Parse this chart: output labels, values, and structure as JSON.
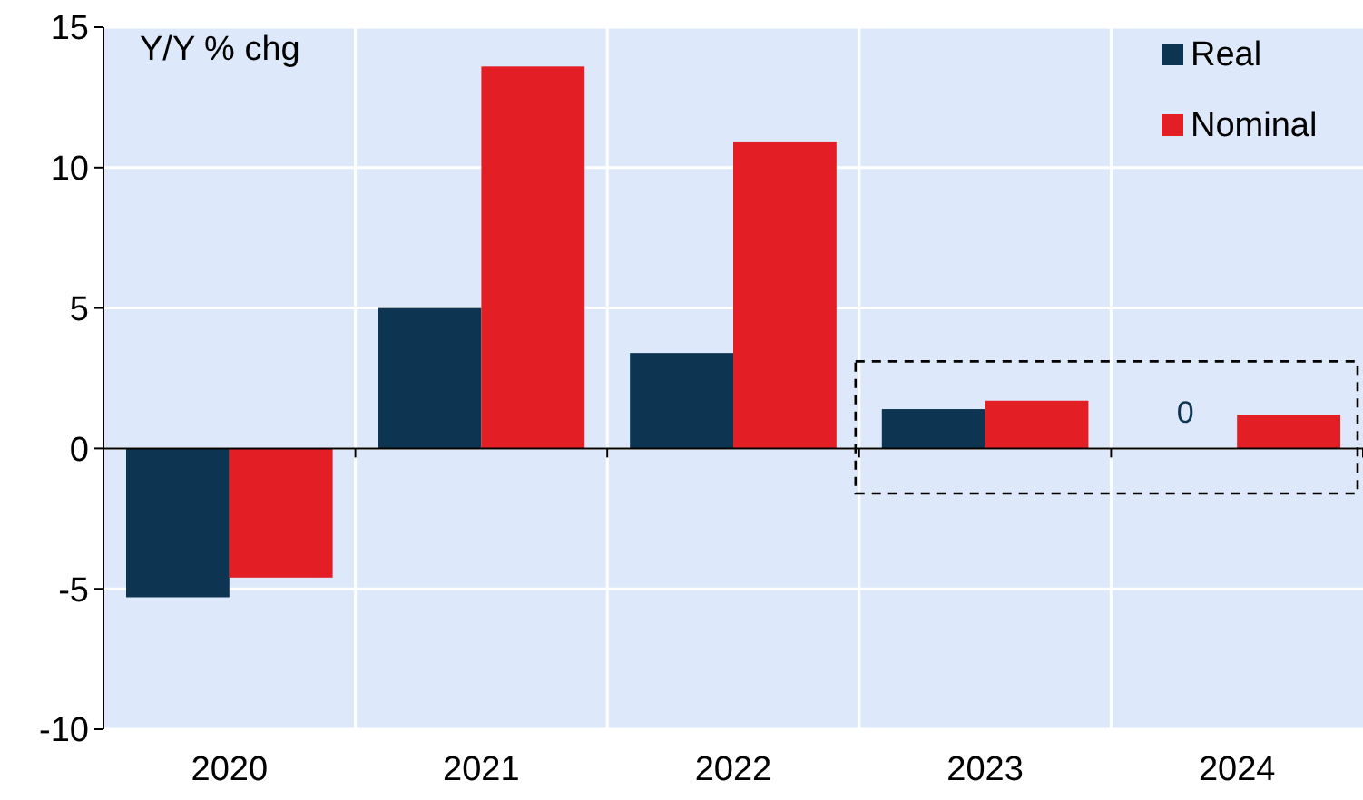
{
  "chart_data": {
    "type": "bar",
    "ylabel": "Y/Y % chg",
    "categories": [
      "2020",
      "2021",
      "2022",
      "2023",
      "2024"
    ],
    "series": [
      {
        "name": "Real",
        "color": "#0d3552",
        "values": [
          -5.3,
          5.0,
          3.4,
          1.4,
          0
        ]
      },
      {
        "name": "Nominal",
        "color": "#e31e24",
        "values": [
          -4.6,
          13.6,
          10.9,
          1.7,
          1.2
        ]
      }
    ],
    "ylim": [
      -10,
      15
    ],
    "yticks": [
      -10,
      -5,
      0,
      5,
      10,
      15
    ],
    "grid": true,
    "legend": "top right",
    "annotations": [
      {
        "text": "0",
        "x": "2024",
        "y": 0
      }
    ]
  }
}
